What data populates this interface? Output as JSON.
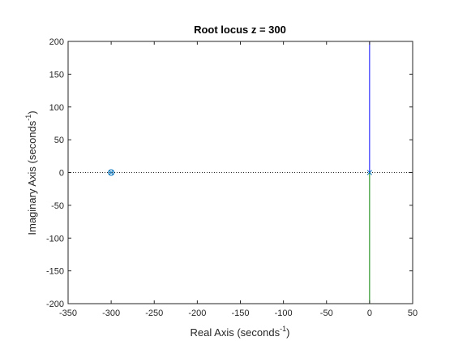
{
  "chart_data": {
    "type": "line",
    "title": "Root locus z = 300",
    "xlabel": {
      "text": "Real Axis (seconds",
      "sup": "-1",
      "close": ")"
    },
    "ylabel": {
      "text": "Imaginary Axis (seconds",
      "sup": "-1",
      "close": ")"
    },
    "xlim": [
      -350,
      50
    ],
    "ylim": [
      -200,
      200
    ],
    "xticks": [
      -350,
      -300,
      -250,
      -200,
      -150,
      -100,
      -50,
      0,
      50
    ],
    "yticks": [
      -200,
      -150,
      -100,
      -50,
      0,
      50,
      100,
      150,
      200
    ],
    "xtick_labels": [
      "-350",
      "-300",
      "-250",
      "-200",
      "-150",
      "-100",
      "-50",
      "0",
      "50"
    ],
    "ytick_labels": [
      "-200",
      "-150",
      "-100",
      "-50",
      "0",
      "50",
      "100",
      "150",
      "200"
    ],
    "grid": false,
    "reference_line": {
      "y": 0,
      "style": "dotted"
    },
    "series": [
      {
        "branch": 1,
        "color": "#0000ff",
        "x": [
          0,
          0
        ],
        "y": [
          0,
          200
        ]
      },
      {
        "branch": 2,
        "color": "#008000",
        "x": [
          0,
          0
        ],
        "y": [
          0,
          -200
        ]
      }
    ],
    "poles": [
      {
        "x": 0,
        "y": 0,
        "color": "#0072bd"
      },
      {
        "x": -300,
        "y": 0,
        "color": "#0072bd"
      }
    ],
    "zeros": [
      {
        "x": -300,
        "y": 0,
        "color": "#0072bd"
      }
    ]
  }
}
